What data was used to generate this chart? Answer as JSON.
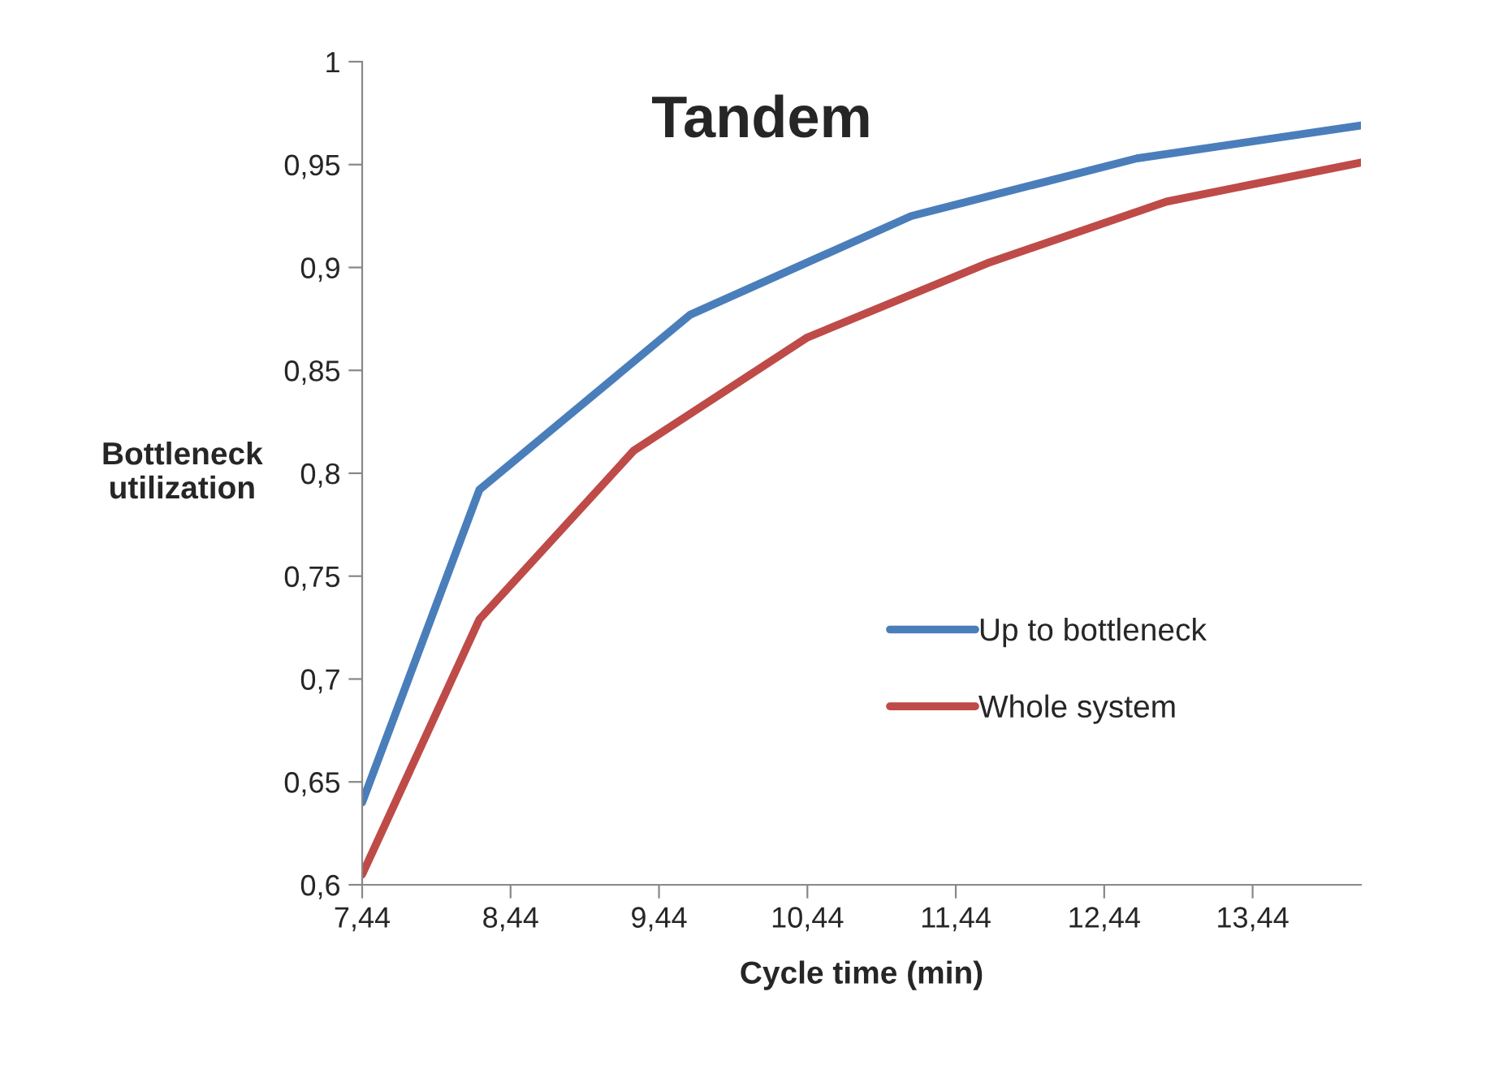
{
  "chart_data": {
    "type": "line",
    "title": "Tandem",
    "xlabel": "Cycle time (min)",
    "ylabel": "Bottleneck\nutilization",
    "xlim": [
      7.44,
      14.17
    ],
    "xticks": [
      {
        "value": 7.44,
        "label": "7,44"
      },
      {
        "value": 8.44,
        "label": "8,44"
      },
      {
        "value": 9.44,
        "label": "9,44"
      },
      {
        "value": 10.44,
        "label": "10,44"
      },
      {
        "value": 11.44,
        "label": "11,44"
      },
      {
        "value": 12.44,
        "label": "12,44"
      },
      {
        "value": 13.44,
        "label": "13,44"
      }
    ],
    "ylim": [
      0.6,
      1
    ],
    "yticks": [
      {
        "value": 0.6,
        "label": "0,6"
      },
      {
        "value": 0.65,
        "label": "0,65"
      },
      {
        "value": 0.7,
        "label": "0,7"
      },
      {
        "value": 0.75,
        "label": "0,75"
      },
      {
        "value": 0.8,
        "label": "0,8"
      },
      {
        "value": 0.85,
        "label": "0,85"
      },
      {
        "value": 0.9,
        "label": "0,9"
      },
      {
        "value": 0.95,
        "label": "0,95"
      },
      {
        "value": 1,
        "label": "1"
      }
    ],
    "grid": false,
    "legend": "right",
    "marker": "none",
    "line_style": "solid",
    "series": [
      {
        "name": "Up to bottleneck",
        "color": "#4a7ebb",
        "x": [
          7.44,
          8.23,
          9.65,
          11.14,
          12.66,
          14.17
        ],
        "values": [
          0.64,
          0.792,
          0.877,
          0.925,
          0.953,
          0.969
        ]
      },
      {
        "name": "Whole system",
        "color": "#be4b48",
        "x": [
          7.44,
          8.23,
          9.27,
          10.44,
          11.65,
          12.86,
          14.17
        ],
        "values": [
          0.605,
          0.729,
          0.811,
          0.866,
          0.902,
          0.932,
          0.951
        ]
      }
    ]
  }
}
